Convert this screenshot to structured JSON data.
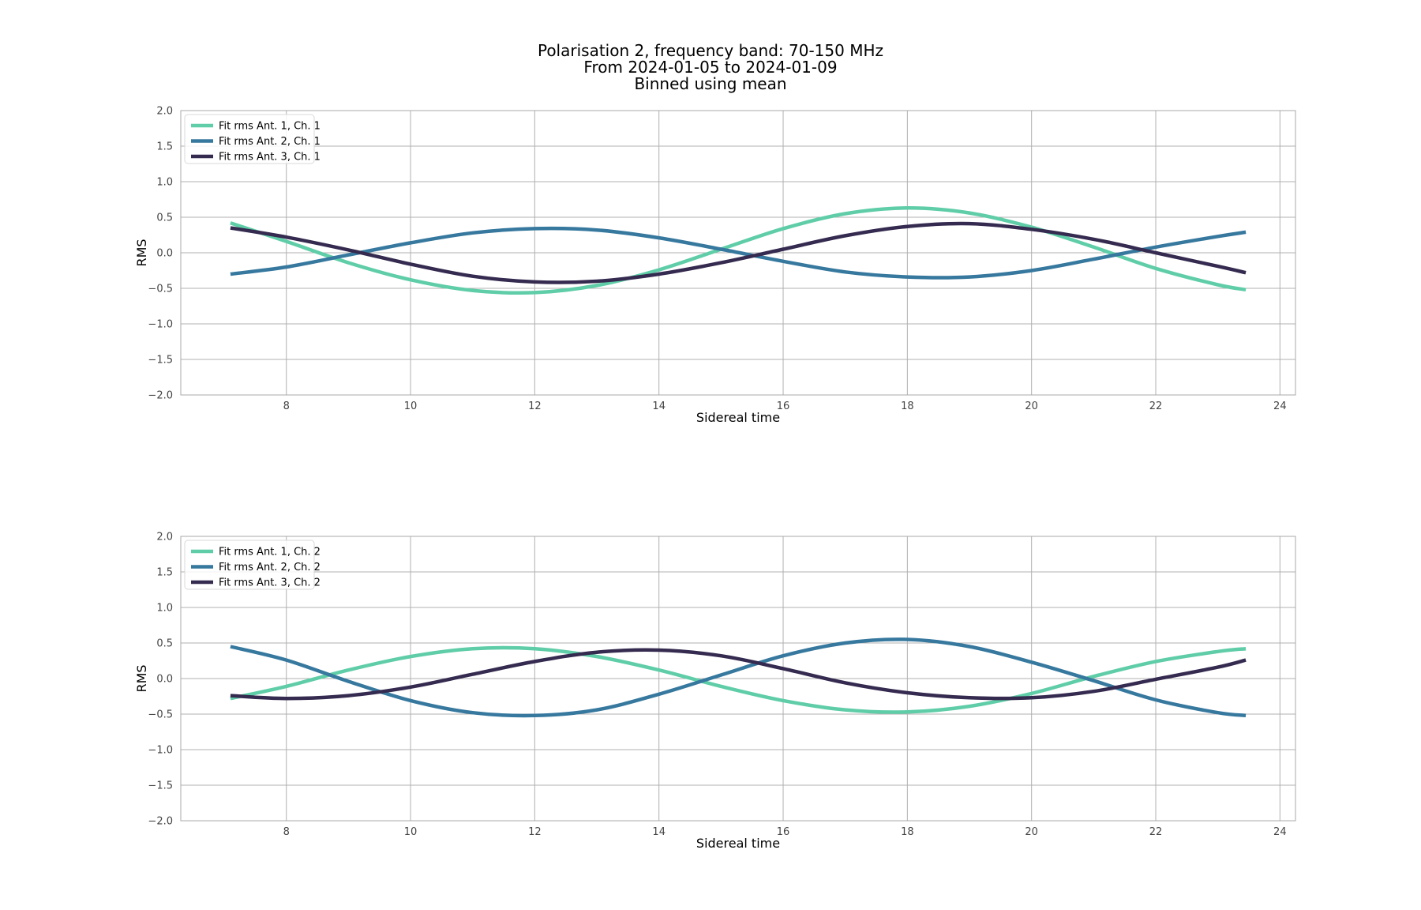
{
  "figure": {
    "title_lines": [
      "Polarisation 2, frequency band: 70-150 MHz",
      "From 2024-01-05 to 2024-01-09",
      "Binned using mean"
    ]
  },
  "chart_data": [
    {
      "type": "line",
      "title": "",
      "xlabel": "Sidereal time",
      "ylabel": "RMS",
      "xlim": [
        6.3,
        24.25
      ],
      "ylim": [
        -2.0,
        2.0
      ],
      "xticks": [
        8,
        10,
        12,
        14,
        16,
        18,
        20,
        22,
        24
      ],
      "yticks": [
        -2.0,
        -1.5,
        -1.0,
        -0.5,
        0.0,
        0.5,
        1.0,
        1.5,
        2.0
      ],
      "grid": true,
      "legend_position": "top-left",
      "x": [
        7.1,
        8.0,
        9.0,
        10.0,
        11.0,
        12.0,
        13.0,
        14.0,
        15.0,
        16.0,
        17.0,
        18.0,
        19.0,
        20.0,
        21.0,
        22.0,
        23.0,
        23.45
      ],
      "series": [
        {
          "name": "Fit rms Ant. 1, Ch. 1",
          "color": "#5fcda7",
          "values": [
            0.42,
            0.16,
            -0.14,
            -0.38,
            -0.53,
            -0.56,
            -0.46,
            -0.24,
            0.05,
            0.34,
            0.55,
            0.63,
            0.56,
            0.36,
            0.08,
            -0.22,
            -0.45,
            -0.52
          ]
        },
        {
          "name": "Fit rms Ant. 2, Ch. 1",
          "color": "#36789e",
          "values": [
            -0.3,
            -0.2,
            -0.03,
            0.14,
            0.28,
            0.34,
            0.32,
            0.21,
            0.05,
            -0.12,
            -0.27,
            -0.34,
            -0.34,
            -0.25,
            -0.09,
            0.08,
            0.23,
            0.29
          ]
        },
        {
          "name": "Fit rms Ant. 3, Ch. 1",
          "color": "#352a4f",
          "values": [
            0.35,
            0.22,
            0.04,
            -0.16,
            -0.33,
            -0.41,
            -0.4,
            -0.3,
            -0.14,
            0.05,
            0.24,
            0.37,
            0.41,
            0.33,
            0.19,
            0.0,
            -0.19,
            -0.28
          ]
        }
      ]
    },
    {
      "type": "line",
      "title": "",
      "xlabel": "Sidereal time",
      "ylabel": "RMS",
      "xlim": [
        6.3,
        24.25
      ],
      "ylim": [
        -2.0,
        2.0
      ],
      "xticks": [
        8,
        10,
        12,
        14,
        16,
        18,
        20,
        22,
        24
      ],
      "yticks": [
        -2.0,
        -1.5,
        -1.0,
        -0.5,
        0.0,
        0.5,
        1.0,
        1.5,
        2.0
      ],
      "grid": true,
      "legend_position": "top-left",
      "x": [
        7.1,
        8.0,
        9.0,
        10.0,
        11.0,
        12.0,
        13.0,
        14.0,
        15.0,
        16.0,
        17.0,
        18.0,
        19.0,
        20.0,
        21.0,
        22.0,
        23.0,
        23.45
      ],
      "series": [
        {
          "name": "Fit rms Ant. 1, Ch. 2",
          "color": "#5fcda7",
          "values": [
            -0.28,
            -0.11,
            0.12,
            0.31,
            0.42,
            0.42,
            0.31,
            0.12,
            -0.11,
            -0.31,
            -0.44,
            -0.47,
            -0.39,
            -0.21,
            0.03,
            0.24,
            0.38,
            0.42
          ]
        },
        {
          "name": "Fit rms Ant. 2, Ch. 2",
          "color": "#36789e",
          "values": [
            0.45,
            0.26,
            -0.04,
            -0.31,
            -0.48,
            -0.52,
            -0.44,
            -0.22,
            0.05,
            0.32,
            0.5,
            0.55,
            0.45,
            0.23,
            -0.03,
            -0.3,
            -0.48,
            -0.52
          ]
        },
        {
          "name": "Fit rms Ant. 3, Ch. 2",
          "color": "#352a4f",
          "values": [
            -0.24,
            -0.28,
            -0.24,
            -0.12,
            0.06,
            0.24,
            0.37,
            0.4,
            0.32,
            0.14,
            -0.06,
            -0.2,
            -0.27,
            -0.27,
            -0.18,
            -0.01,
            0.16,
            0.26
          ]
        }
      ]
    }
  ]
}
